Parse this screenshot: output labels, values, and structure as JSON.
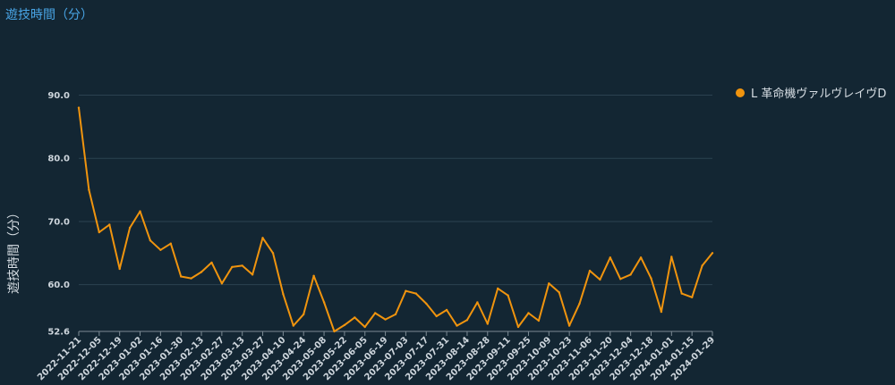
{
  "title": "遊技時間（分）",
  "legend": {
    "label": "L 革命機ヴァルヴレイヴD"
  },
  "colors": {
    "background": "#132633",
    "series": "#f0940e",
    "title": "#49a5e6",
    "grid": "#2b4250"
  },
  "chart_data": {
    "type": "line",
    "title": "遊技時間（分）",
    "ylabel": "遊技時間（分）",
    "xlabel": "",
    "ylim": [
      52.6,
      90
    ],
    "yticks": [
      52.6,
      60.0,
      70.0,
      80.0,
      90.0
    ],
    "ytick_labels": [
      "52.6",
      "60.0",
      "70.0",
      "80.0",
      "90.0"
    ],
    "grid": true,
    "legend_position": "top-right",
    "x": [
      "2022-11-21",
      "2022-11-28",
      "2022-12-05",
      "2022-12-12",
      "2022-12-19",
      "2022-12-26",
      "2023-01-02",
      "2023-01-09",
      "2023-01-16",
      "2023-01-23",
      "2023-01-30",
      "2023-02-06",
      "2023-02-13",
      "2023-02-20",
      "2023-02-27",
      "2023-03-06",
      "2023-03-13",
      "2023-03-20",
      "2023-03-27",
      "2023-04-03",
      "2023-04-10",
      "2023-04-17",
      "2023-04-24",
      "2023-05-01",
      "2023-05-08",
      "2023-05-15",
      "2023-05-22",
      "2023-05-29",
      "2023-06-05",
      "2023-06-12",
      "2023-06-19",
      "2023-06-26",
      "2023-07-03",
      "2023-07-10",
      "2023-07-17",
      "2023-07-24",
      "2023-07-31",
      "2023-08-07",
      "2023-08-14",
      "2023-08-21",
      "2023-08-28",
      "2023-09-04",
      "2023-09-11",
      "2023-09-18",
      "2023-09-25",
      "2023-10-02",
      "2023-10-09",
      "2023-10-16",
      "2023-10-23",
      "2023-10-30",
      "2023-11-06",
      "2023-11-13",
      "2023-11-20",
      "2023-11-27",
      "2023-12-04",
      "2023-12-11",
      "2023-12-18",
      "2023-12-25",
      "2024-01-01",
      "2024-01-08",
      "2024-01-15",
      "2024-01-22",
      "2024-01-29"
    ],
    "xtick_labels": [
      "2022-11-21",
      "2022-12-05",
      "2022-12-19",
      "2023-01-02",
      "2023-01-16",
      "2023-01-30",
      "2023-02-13",
      "2023-02-27",
      "2023-03-13",
      "2023-03-27",
      "2023-04-10",
      "2023-04-24",
      "2023-05-08",
      "2023-05-22",
      "2023-06-05",
      "2023-06-19",
      "2023-07-03",
      "2023-07-17",
      "2023-07-31",
      "2023-08-14",
      "2023-08-28",
      "2023-09-11",
      "2023-09-25",
      "2023-10-09",
      "2023-10-23",
      "2023-11-06",
      "2023-11-20",
      "2023-12-04",
      "2023-12-18",
      "2024-01-01",
      "2024-01-15",
      "2024-01-29"
    ],
    "series": [
      {
        "name": "L 革命機ヴァルヴレイヴD",
        "values": [
          88.0,
          75.0,
          68.3,
          69.5,
          62.5,
          69.0,
          71.6,
          67.0,
          65.5,
          66.5,
          61.3,
          61.0,
          62.0,
          63.5,
          60.2,
          62.8,
          63.0,
          61.6,
          67.4,
          65.0,
          58.5,
          53.5,
          55.3,
          61.4,
          57.2,
          52.6,
          53.6,
          54.8,
          53.3,
          55.5,
          54.5,
          55.3,
          59.0,
          58.6,
          57.0,
          55.0,
          56.0,
          53.5,
          54.4,
          57.2,
          53.8,
          59.4,
          58.3,
          53.3,
          55.5,
          54.3,
          60.2,
          58.8,
          53.5,
          57.0,
          62.2,
          60.8,
          64.3,
          60.9,
          61.6,
          64.3,
          61.0,
          55.7,
          64.4,
          58.6,
          58.0,
          63.0,
          65.0
        ]
      }
    ]
  }
}
